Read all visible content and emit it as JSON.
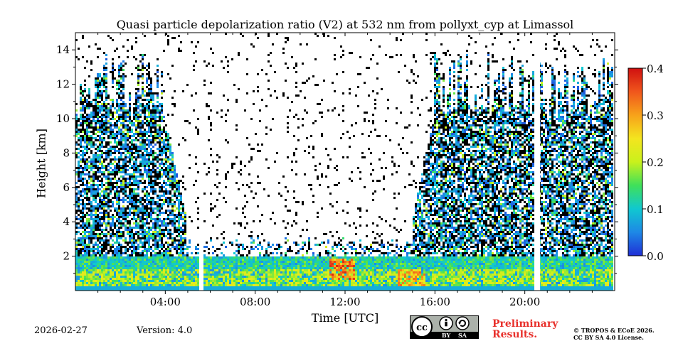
{
  "page": {
    "date": "2026-02-27",
    "version": "Version: 4.0",
    "preliminary": [
      "Preliminary",
      "Results."
    ],
    "copyright": [
      "© TROPOS & ECoE 2026.",
      "CC BY SA 4.0 License."
    ],
    "license_badge": {
      "cc": "cc",
      "by": "BY",
      "sa": "SA"
    }
  },
  "chart_data": {
    "type": "heatmap",
    "title": "Quasi particle depolarization ratio (V2) at 532 nm from pollyxt_cyp at Limassol",
    "xlabel": "Time [UTC]",
    "ylabel": "Height [km]",
    "xlim_hours": [
      0,
      24
    ],
    "ylim_km": [
      0,
      15
    ],
    "x_ticks": [
      {
        "hour": 4,
        "label": "04:00"
      },
      {
        "hour": 8,
        "label": "08:00"
      },
      {
        "hour": 12,
        "label": "12:00"
      },
      {
        "hour": 16,
        "label": "16:00"
      },
      {
        "hour": 20,
        "label": "20:00"
      }
    ],
    "y_ticks": [
      {
        "value": 2,
        "label": "2"
      },
      {
        "value": 4,
        "label": "4"
      },
      {
        "value": 6,
        "label": "6"
      },
      {
        "value": 8,
        "label": "8"
      },
      {
        "value": 10,
        "label": "10"
      },
      {
        "value": 12,
        "label": "12"
      },
      {
        "value": 14,
        "label": "14"
      }
    ],
    "colorbar": {
      "range": [
        0.0,
        0.4
      ],
      "ticks": [
        {
          "value": 0.0,
          "label": "0.0"
        },
        {
          "value": 0.1,
          "label": "0.1"
        },
        {
          "value": 0.2,
          "label": "0.2"
        },
        {
          "value": 0.3,
          "label": "0.3"
        },
        {
          "value": 0.4,
          "label": "0.4"
        }
      ],
      "colormap": [
        "#1f2fd6",
        "#1e88e6",
        "#10c8d0",
        "#3fe05a",
        "#c9f11c",
        "#f4e51f",
        "#f7a21a",
        "#f0561c",
        "#d01010"
      ]
    },
    "features": {
      "boundary_layer_top_km": 2.0,
      "noise_free_daytime_hours": [
        5.0,
        15.0
      ],
      "data_gaps_hours": [
        5.6,
        20.6
      ],
      "high_depol_layers": [
        {
          "hour": 11.9,
          "height_km": 1.2,
          "value": 0.35
        },
        {
          "hour": 15.0,
          "height_km": 0.7,
          "value": 0.32
        }
      ]
    }
  }
}
